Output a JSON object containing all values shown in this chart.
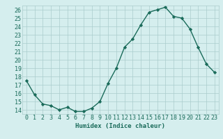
{
  "x": [
    0,
    1,
    2,
    3,
    4,
    5,
    6,
    7,
    8,
    9,
    10,
    11,
    12,
    13,
    14,
    15,
    16,
    17,
    18,
    19,
    20,
    21,
    22,
    23
  ],
  "y": [
    17.5,
    15.8,
    14.7,
    14.5,
    14.0,
    14.3,
    13.8,
    13.8,
    14.2,
    15.0,
    17.2,
    19.0,
    21.5,
    22.5,
    24.2,
    25.7,
    26.0,
    26.3,
    25.2,
    25.0,
    23.7,
    21.5,
    19.5,
    18.5
  ],
  "line_color": "#1a6b5a",
  "marker": "D",
  "markersize": 2.2,
  "bg_color": "#d5eeee",
  "grid_color": "#aacccc",
  "xlabel": "Humidex (Indice chaleur)",
  "xlim": [
    -0.5,
    23.5
  ],
  "ylim": [
    13.5,
    26.5
  ],
  "yticks": [
    14,
    15,
    16,
    17,
    18,
    19,
    20,
    21,
    22,
    23,
    24,
    25,
    26
  ],
  "xticks": [
    0,
    1,
    2,
    3,
    4,
    5,
    6,
    7,
    8,
    9,
    10,
    11,
    12,
    13,
    14,
    15,
    16,
    17,
    18,
    19,
    20,
    21,
    22,
    23
  ],
  "xtick_labels": [
    "0",
    "1",
    "2",
    "3",
    "4",
    "5",
    "6",
    "7",
    "8",
    "9",
    "10",
    "11",
    "12",
    "13",
    "14",
    "15",
    "16",
    "17",
    "18",
    "19",
    "20",
    "21",
    "22",
    "23"
  ],
  "linewidth": 1.0,
  "xlabel_fontsize": 6.5,
  "tick_fontsize": 6.0,
  "tick_color": "#1a6b5a"
}
